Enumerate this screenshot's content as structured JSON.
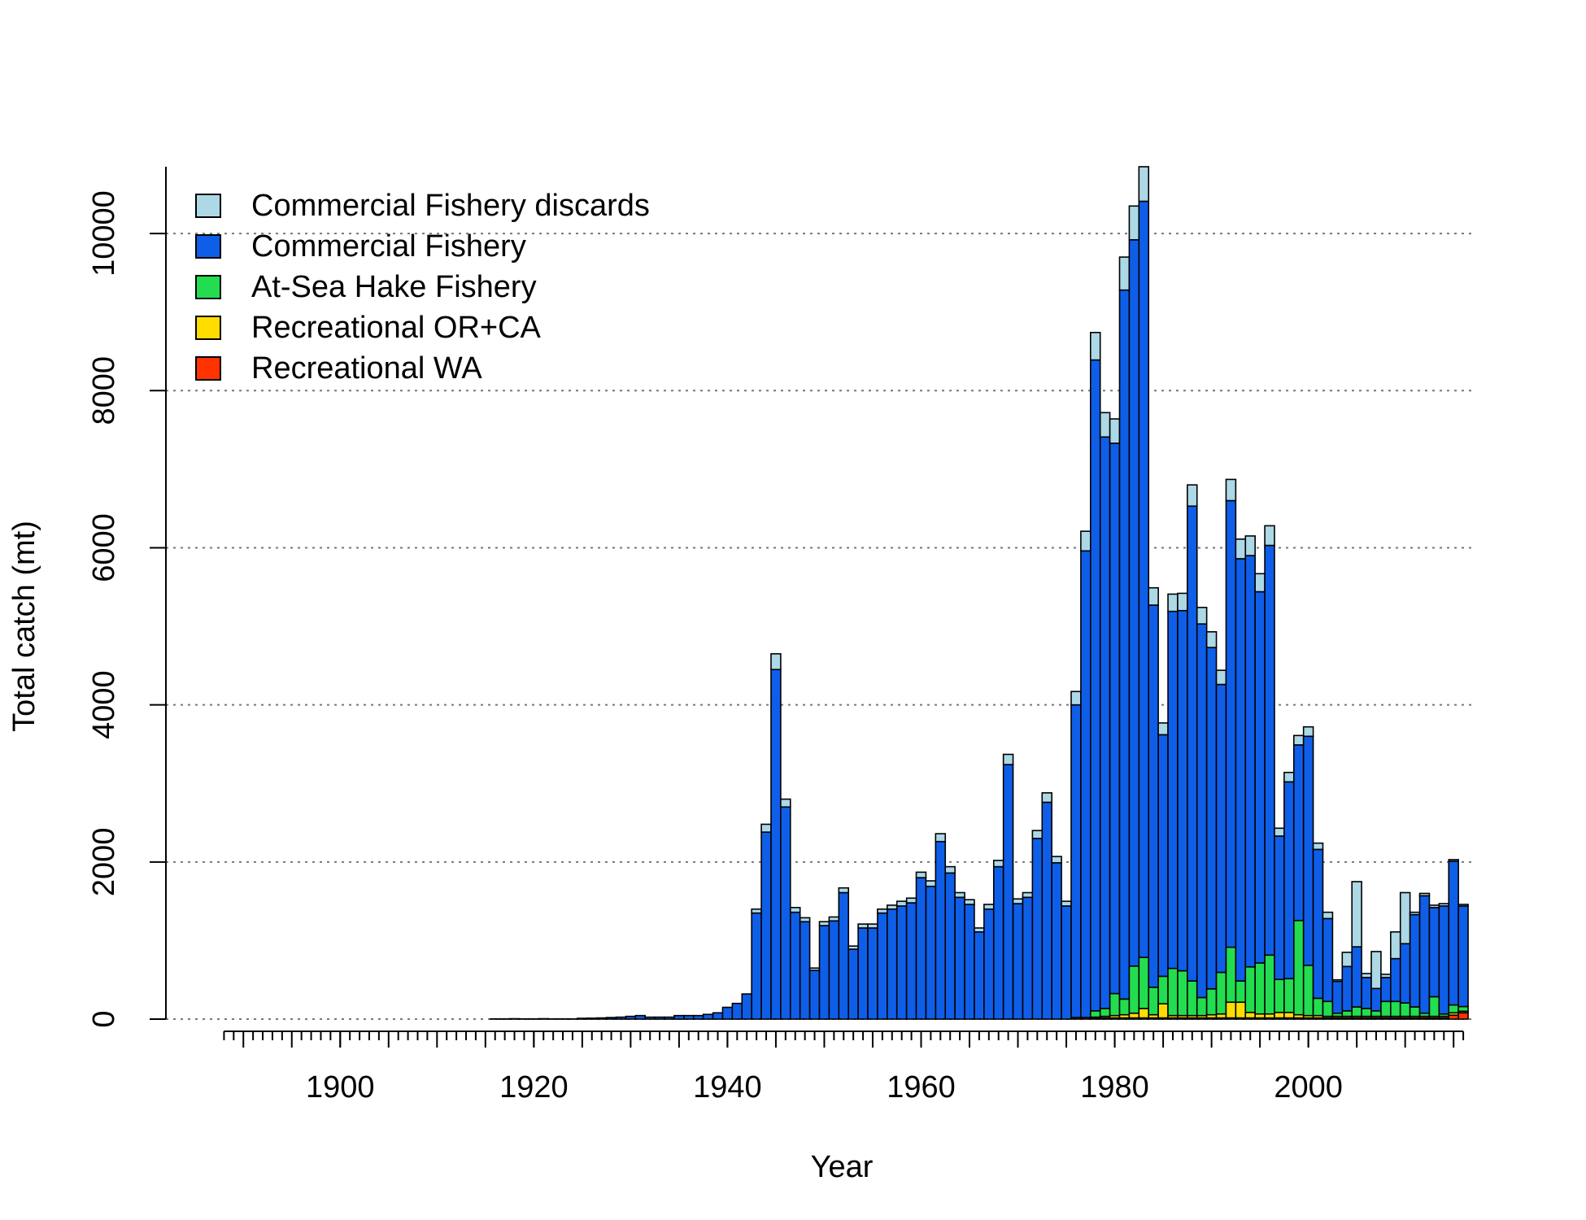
{
  "chart_data": {
    "type": "bar",
    "stacked": true,
    "xlabel": "Year",
    "ylabel": "Total catch (mt)",
    "x": [
      1888,
      1889,
      1890,
      1891,
      1892,
      1893,
      1894,
      1895,
      1896,
      1897,
      1898,
      1899,
      1900,
      1901,
      1902,
      1903,
      1904,
      1905,
      1906,
      1907,
      1908,
      1909,
      1910,
      1911,
      1912,
      1913,
      1914,
      1915,
      1916,
      1917,
      1918,
      1919,
      1920,
      1921,
      1922,
      1923,
      1924,
      1925,
      1926,
      1927,
      1928,
      1929,
      1930,
      1931,
      1932,
      1933,
      1934,
      1935,
      1936,
      1937,
      1938,
      1939,
      1940,
      1941,
      1942,
      1943,
      1944,
      1945,
      1946,
      1947,
      1948,
      1949,
      1950,
      1951,
      1952,
      1953,
      1954,
      1955,
      1956,
      1957,
      1958,
      1959,
      1960,
      1961,
      1962,
      1963,
      1964,
      1965,
      1966,
      1967,
      1968,
      1969,
      1970,
      1971,
      1972,
      1973,
      1974,
      1975,
      1976,
      1977,
      1978,
      1979,
      1980,
      1981,
      1982,
      1983,
      1984,
      1985,
      1986,
      1987,
      1988,
      1989,
      1990,
      1991,
      1992,
      1993,
      1994,
      1995,
      1996,
      1997,
      1998,
      1999,
      2000,
      2001,
      2002,
      2003,
      2004,
      2005,
      2006,
      2007,
      2008,
      2009,
      2010,
      2011,
      2012,
      2013,
      2014,
      2015,
      2016
    ],
    "series": [
      {
        "name": "Commercial Fishery discards",
        "color": "#add8e6",
        "values": [
          0,
          0,
          0,
          0,
          0,
          0,
          0,
          0,
          0,
          0,
          0,
          0,
          0,
          0,
          0,
          0,
          0,
          0,
          0,
          0,
          0,
          0,
          0,
          0,
          0,
          0,
          0,
          0,
          0,
          0,
          0,
          0,
          0,
          0,
          0,
          0,
          0,
          0,
          0,
          0,
          0,
          0,
          0,
          0,
          0,
          0,
          0,
          0,
          0,
          0,
          0,
          0,
          0,
          0,
          0,
          50,
          100,
          200,
          100,
          60,
          50,
          30,
          50,
          50,
          60,
          40,
          50,
          50,
          50,
          50,
          60,
          60,
          70,
          70,
          100,
          80,
          60,
          60,
          50,
          60,
          80,
          130,
          60,
          60,
          100,
          120,
          80,
          60,
          170,
          250,
          350,
          310,
          310,
          420,
          430,
          440,
          220,
          150,
          220,
          220,
          270,
          210,
          200,
          180,
          270,
          250,
          250,
          230,
          250,
          100,
          120,
          120,
          120,
          80,
          80,
          20,
          180,
          830,
          50,
          470,
          40,
          340,
          650,
          30,
          30,
          30,
          30,
          20,
          20
        ]
      },
      {
        "name": "Commercial Fishery",
        "color": "#0f5ee8",
        "values": [
          0,
          0,
          0,
          0,
          0,
          0,
          0,
          0,
          0,
          0,
          0,
          0,
          0,
          0,
          0,
          0,
          0,
          0,
          0,
          0,
          0,
          0,
          0,
          0,
          0,
          0,
          0,
          0,
          3,
          3,
          5,
          3,
          3,
          5,
          3,
          3,
          3,
          10,
          12,
          15,
          20,
          25,
          35,
          45,
          25,
          25,
          25,
          45,
          45,
          45,
          60,
          80,
          150,
          200,
          320,
          1350,
          2380,
          4450,
          2700,
          1360,
          1240,
          620,
          1190,
          1250,
          1610,
          890,
          1160,
          1160,
          1350,
          1400,
          1440,
          1480,
          1800,
          1690,
          2260,
          1860,
          1550,
          1460,
          1110,
          1400,
          1940,
          3240,
          1470,
          1550,
          2300,
          2760,
          1990,
          1440,
          3980,
          5940,
          8285,
          7275,
          7005,
          9025,
          9245,
          9625,
          4865,
          3075,
          4545,
          4585,
          6045,
          4755,
          4345,
          3665,
          5685,
          5375,
          5235,
          4725,
          5215,
          1825,
          2505,
          2235,
          2915,
          1895,
          1055,
          405,
          565,
          765,
          395,
          285,
          305,
          545,
          755,
          1175,
          1495,
          1135,
          1375,
          1830,
          1280
        ]
      },
      {
        "name": "At-Sea Hake Fishery",
        "color": "#22dd4f",
        "values": [
          0,
          0,
          0,
          0,
          0,
          0,
          0,
          0,
          0,
          0,
          0,
          0,
          0,
          0,
          0,
          0,
          0,
          0,
          0,
          0,
          0,
          0,
          0,
          0,
          0,
          0,
          0,
          0,
          0,
          0,
          0,
          0,
          0,
          0,
          0,
          0,
          0,
          0,
          0,
          0,
          0,
          0,
          0,
          0,
          0,
          0,
          0,
          0,
          0,
          0,
          0,
          0,
          0,
          0,
          0,
          0,
          0,
          0,
          0,
          0,
          0,
          0,
          0,
          0,
          0,
          0,
          0,
          0,
          0,
          0,
          0,
          0,
          0,
          0,
          0,
          0,
          0,
          0,
          0,
          0,
          0,
          0,
          0,
          0,
          0,
          0,
          0,
          0,
          0,
          0,
          80,
          100,
          280,
          200,
          600,
          650,
          350,
          350,
          600,
          570,
          440,
          230,
          330,
          530,
          700,
          270,
          580,
          650,
          750,
          420,
          430,
          1200,
          640,
          220,
          190,
          40,
          70,
          120,
          100,
          70,
          190,
          190,
          170,
          120,
          40,
          250,
          30,
          100,
          60
        ]
      },
      {
        "name": "Recreational OR+CA",
        "color": "#ffdd00",
        "values": [
          0,
          0,
          0,
          0,
          0,
          0,
          0,
          0,
          0,
          0,
          0,
          0,
          0,
          0,
          0,
          0,
          0,
          0,
          0,
          0,
          0,
          0,
          0,
          0,
          0,
          0,
          0,
          0,
          0,
          0,
          0,
          0,
          0,
          0,
          0,
          0,
          0,
          0,
          0,
          0,
          0,
          0,
          0,
          0,
          0,
          0,
          0,
          0,
          0,
          0,
          0,
          0,
          0,
          0,
          0,
          0,
          0,
          0,
          0,
          0,
          0,
          0,
          0,
          0,
          0,
          0,
          0,
          0,
          0,
          0,
          0,
          0,
          0,
          0,
          0,
          0,
          0,
          0,
          0,
          0,
          0,
          0,
          0,
          0,
          0,
          0,
          0,
          0,
          0,
          0,
          10,
          20,
          30,
          40,
          60,
          120,
          40,
          180,
          30,
          30,
          30,
          30,
          40,
          50,
          200,
          200,
          70,
          50,
          50,
          70,
          70,
          40,
          30,
          30,
          20,
          20,
          20,
          20,
          20,
          20,
          20,
          20,
          20,
          20,
          20,
          20,
          20,
          30,
          20
        ]
      },
      {
        "name": "Recreational WA",
        "color": "#ff3300",
        "values": [
          0,
          0,
          0,
          0,
          0,
          0,
          0,
          0,
          0,
          0,
          0,
          0,
          0,
          0,
          0,
          0,
          0,
          0,
          0,
          0,
          0,
          0,
          0,
          0,
          0,
          0,
          0,
          0,
          0,
          0,
          0,
          0,
          0,
          0,
          0,
          0,
          0,
          0,
          0,
          0,
          0,
          0,
          0,
          0,
          0,
          0,
          0,
          0,
          0,
          0,
          0,
          0,
          0,
          0,
          0,
          0,
          0,
          0,
          0,
          0,
          0,
          0,
          0,
          0,
          0,
          0,
          0,
          0,
          0,
          0,
          0,
          0,
          0,
          0,
          0,
          0,
          0,
          0,
          0,
          0,
          0,
          0,
          0,
          0,
          0,
          0,
          0,
          0,
          20,
          20,
          15,
          15,
          15,
          15,
          15,
          15,
          15,
          15,
          15,
          15,
          15,
          15,
          15,
          15,
          15,
          15,
          15,
          15,
          15,
          15,
          15,
          15,
          15,
          15,
          15,
          15,
          15,
          15,
          15,
          15,
          15,
          15,
          15,
          15,
          15,
          15,
          15,
          50,
          80
        ]
      }
    ],
    "xlim": [
      1882,
      2017
    ],
    "xticks": [
      1900,
      1920,
      1940,
      1960,
      1980,
      2000
    ],
    "ylim": [
      0,
      10850
    ],
    "yticks": [
      0,
      2000,
      4000,
      6000,
      8000,
      10000
    ],
    "grid": true,
    "legend": "upper left"
  }
}
